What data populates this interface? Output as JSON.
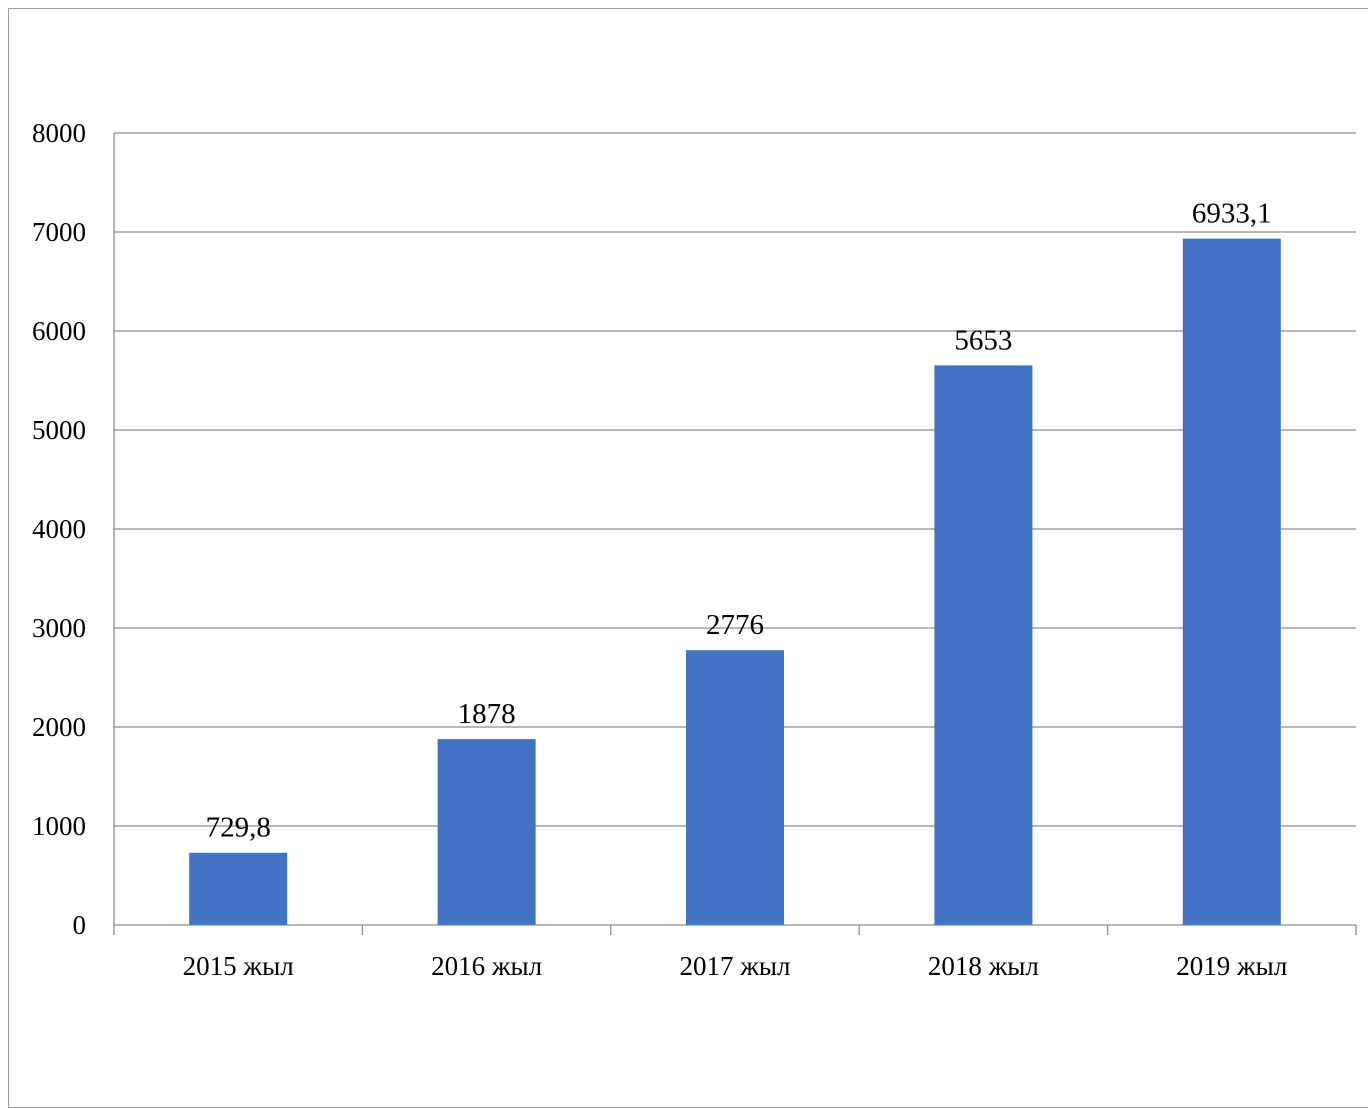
{
  "chart_data": {
    "type": "bar",
    "categories": [
      "2015 жыл",
      "2016 жыл",
      "2017 жыл",
      "2018 жыл",
      "2019 жыл"
    ],
    "values": [
      729.8,
      1878,
      2776,
      5653,
      6933.1
    ],
    "value_labels": [
      "729,8",
      "1878",
      "2776",
      "5653",
      "6933,1"
    ],
    "y_ticks": [
      "0",
      "1000",
      "2000",
      "3000",
      "4000",
      "5000",
      "6000",
      "7000",
      "8000"
    ],
    "ylim": [
      0,
      8000
    ],
    "grid": true,
    "legend": "none",
    "bar_color": "#4472C4",
    "grid_color": "#8c8c8c"
  }
}
